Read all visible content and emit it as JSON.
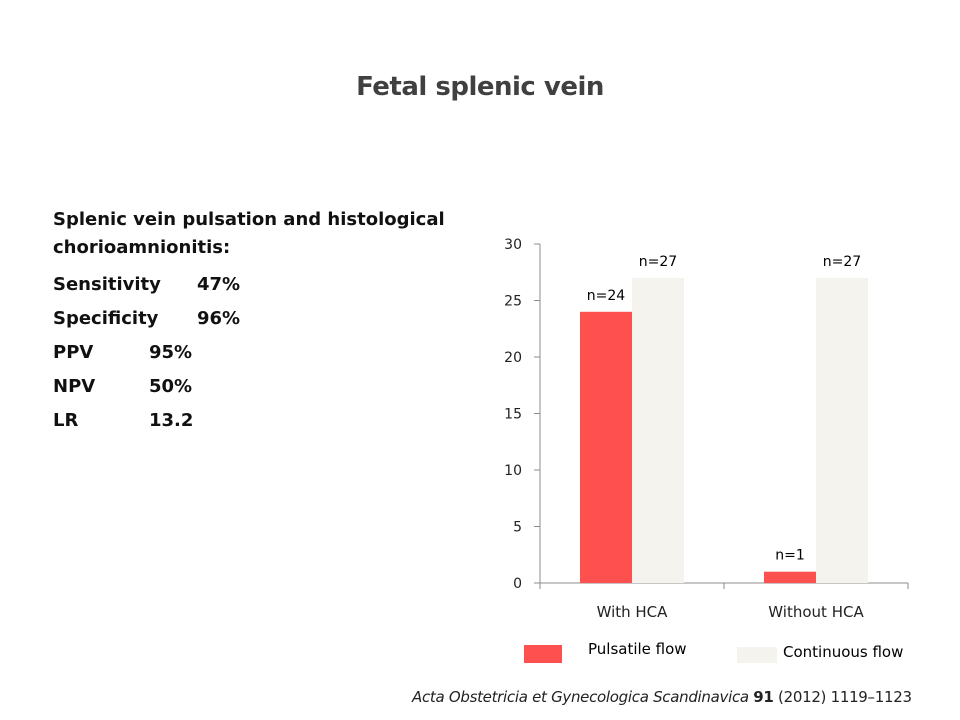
{
  "slide": {
    "title": "Fetal splenic vein"
  },
  "stats": {
    "heading": "Splenic vein pulsation and histological chorioamnionitis:",
    "rows": [
      {
        "label": "Sensitivity",
        "value": "47%"
      },
      {
        "label": "Specificity",
        "value": "96%"
      },
      {
        "label": "PPV",
        "value": "95%"
      },
      {
        "label": "NPV",
        "value": "50%"
      },
      {
        "label": "LR",
        "value": "13.2"
      }
    ]
  },
  "chart_data": {
    "type": "bar",
    "categories": [
      "With HCA",
      "Without HCA"
    ],
    "series": [
      {
        "name": "Pulsatile flow",
        "values": [
          24,
          1
        ],
        "labels": [
          "n=24",
          "n=1"
        ],
        "color": "#FF5050"
      },
      {
        "name": "Continuous flow",
        "values": [
          27,
          27
        ],
        "labels": [
          "n=27",
          "n=27"
        ],
        "color": "#F5F3EE"
      }
    ],
    "yticks": [
      0,
      5,
      10,
      15,
      20,
      25,
      30
    ],
    "ylim": [
      0,
      30
    ],
    "grid": false,
    "legend_position": "bottom"
  },
  "citation": {
    "journal": "Acta Obstetricia et Gynecologica Scandinavica",
    "volume": "91",
    "rest": "(2012) 1119–1123"
  }
}
